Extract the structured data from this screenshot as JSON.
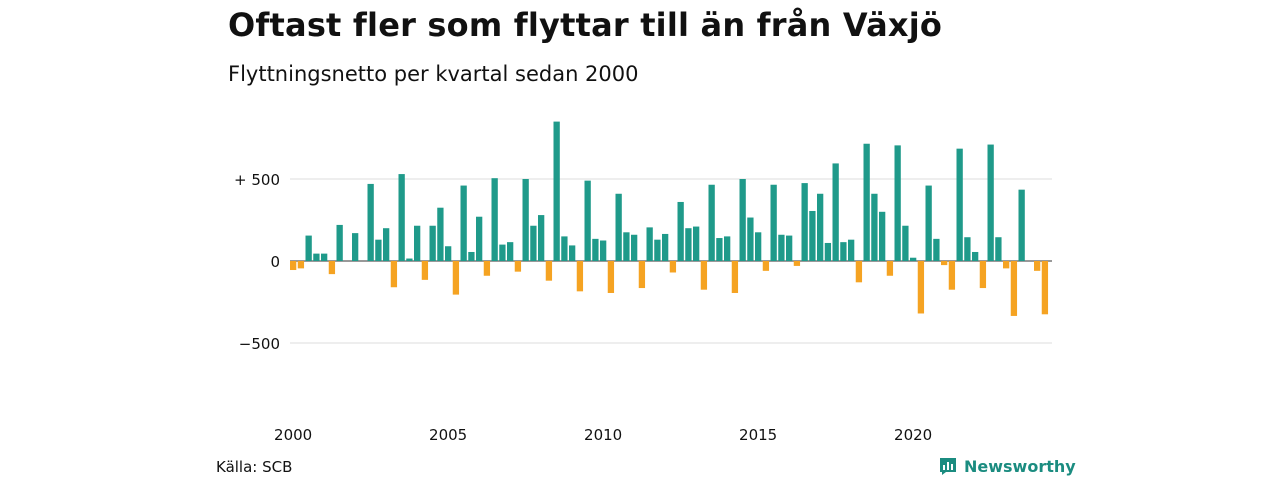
{
  "header": {
    "title": "Oftast fler som flyttar till än från Växjö",
    "subtitle": "Flyttningsnetto per kvartal sedan 2000"
  },
  "footer": {
    "source": "Källa: SCB",
    "brand": "Newsworthy"
  },
  "colors": {
    "positive": "#1f9a8a",
    "negative": "#f5a322",
    "grid": "#dddddd",
    "brand": "#1b8c80"
  },
  "icons": {
    "logo": "newsworthy-chart-icon"
  },
  "chart_data": {
    "type": "bar",
    "title": "Oftast fler som flyttar till än från Växjö",
    "subtitle": "Flyttningsnetto per kvartal sedan 2000",
    "x_start": "2000 Q1",
    "x_step": "quarter",
    "ylim": [
      -750,
      900
    ],
    "y_ticks": [
      {
        "value": 500,
        "label": "+ 500"
      },
      {
        "value": 0,
        "label": "0"
      },
      {
        "value": -500,
        "label": "−500"
      }
    ],
    "x_ticks": [
      {
        "index": 0,
        "label": "2000"
      },
      {
        "index": 20,
        "label": "2005"
      },
      {
        "index": 40,
        "label": "2010"
      },
      {
        "index": 60,
        "label": "2015"
      },
      {
        "index": 80,
        "label": "2020"
      }
    ],
    "grid": true,
    "values": [
      -55,
      -45,
      155,
      45,
      45,
      -80,
      220,
      0,
      170,
      0,
      470,
      130,
      200,
      -160,
      530,
      15,
      215,
      -115,
      215,
      325,
      90,
      -205,
      460,
      55,
      270,
      -90,
      505,
      100,
      115,
      -65,
      500,
      215,
      280,
      -120,
      850,
      150,
      95,
      -185,
      490,
      135,
      125,
      -195,
      410,
      175,
      160,
      -165,
      205,
      130,
      165,
      -70,
      360,
      200,
      210,
      -175,
      465,
      140,
      150,
      -195,
      500,
      265,
      175,
      -60,
      465,
      160,
      155,
      -30,
      475,
      305,
      410,
      110,
      595,
      115,
      130,
      -130,
      715,
      410,
      300,
      -90,
      705,
      215,
      20,
      -320,
      460,
      135,
      -25,
      -175,
      685,
      145,
      55,
      -165,
      710,
      145,
      -45,
      -335,
      435,
      0,
      -60,
      -325
    ]
  }
}
